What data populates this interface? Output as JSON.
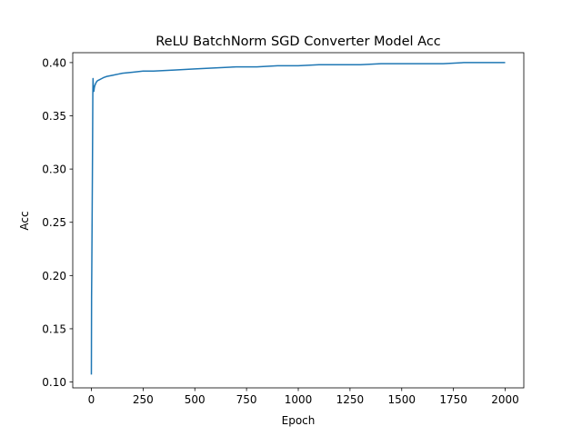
{
  "chart_data": {
    "type": "line",
    "title": "ReLU BatchNorm SGD Converter Model Acc",
    "xlabel": "Epoch",
    "ylabel": "Acc",
    "xlim": [
      -90,
      2090
    ],
    "ylim": [
      0.0945,
      0.4093
    ],
    "xticks": [
      0,
      250,
      500,
      750,
      1000,
      1250,
      1500,
      1750,
      2000
    ],
    "xtick_labels": [
      "0",
      "250",
      "500",
      "750",
      "1000",
      "1250",
      "1500",
      "1750",
      "2000"
    ],
    "yticks": [
      0.1,
      0.15,
      0.2,
      0.25,
      0.3,
      0.35,
      0.4
    ],
    "ytick_labels": [
      "0.10",
      "0.15",
      "0.20",
      "0.25",
      "0.30",
      "0.35",
      "0.40"
    ],
    "grid": false,
    "series_color": "#1f77b4",
    "series": [
      {
        "x": [
          0,
          1,
          2,
          3,
          4,
          5,
          6,
          7,
          8,
          9,
          10,
          12,
          14,
          16,
          20,
          25,
          30,
          40,
          50,
          60,
          75,
          100,
          125,
          150,
          200,
          250,
          300,
          400,
          500,
          600,
          700,
          800,
          900,
          1000,
          1100,
          1200,
          1300,
          1400,
          1500,
          1600,
          1700,
          1800,
          1900,
          2000
        ],
        "y": [
          0.107,
          0.18,
          0.205,
          0.235,
          0.265,
          0.295,
          0.33,
          0.37,
          0.385,
          0.38,
          0.374,
          0.373,
          0.376,
          0.378,
          0.38,
          0.382,
          0.383,
          0.384,
          0.385,
          0.386,
          0.387,
          0.388,
          0.389,
          0.39,
          0.391,
          0.392,
          0.392,
          0.393,
          0.394,
          0.395,
          0.396,
          0.396,
          0.397,
          0.397,
          0.398,
          0.398,
          0.398,
          0.399,
          0.399,
          0.399,
          0.399,
          0.4,
          0.4,
          0.4
        ]
      }
    ]
  }
}
